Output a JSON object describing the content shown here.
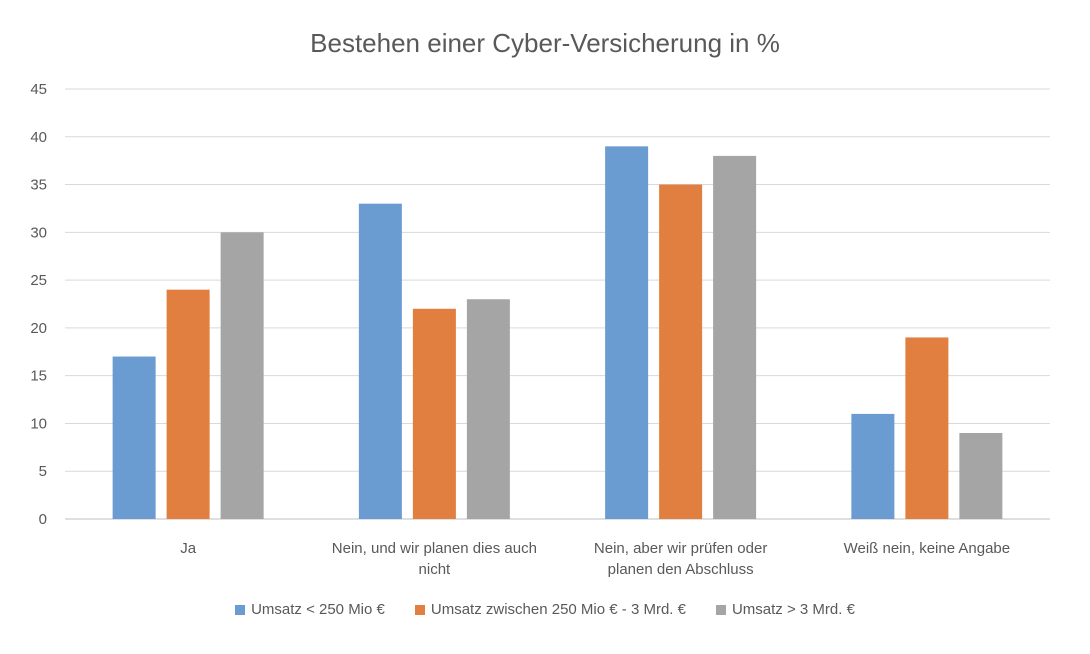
{
  "chart_data": {
    "type": "bar",
    "title": "Bestehen einer Cyber-Versicherung in %",
    "categories": [
      [
        "Ja"
      ],
      [
        "Nein, und wir planen dies auch",
        "nicht"
      ],
      [
        "Nein, aber wir prüfen oder",
        "planen den Abschluss"
      ],
      [
        "Weiß nein, keine Angabe"
      ]
    ],
    "series": [
      {
        "name": "Umsatz < 250 Mio €",
        "color": "#6a9bd1",
        "values": [
          17,
          33,
          39,
          11
        ]
      },
      {
        "name": "Umsatz zwischen 250 Mio € - 3 Mrd. €",
        "color": "#e07f3f",
        "values": [
          24,
          22,
          35,
          19
        ]
      },
      {
        "name": "Umsatz > 3 Mrd. €",
        "color": "#a5a5a5",
        "values": [
          30,
          23,
          38,
          9
        ]
      }
    ],
    "ylim": [
      0,
      45
    ],
    "yticks": [
      0,
      5,
      10,
      15,
      20,
      25,
      30,
      35,
      40,
      45
    ],
    "grid": true,
    "legend_position": "bottom"
  }
}
